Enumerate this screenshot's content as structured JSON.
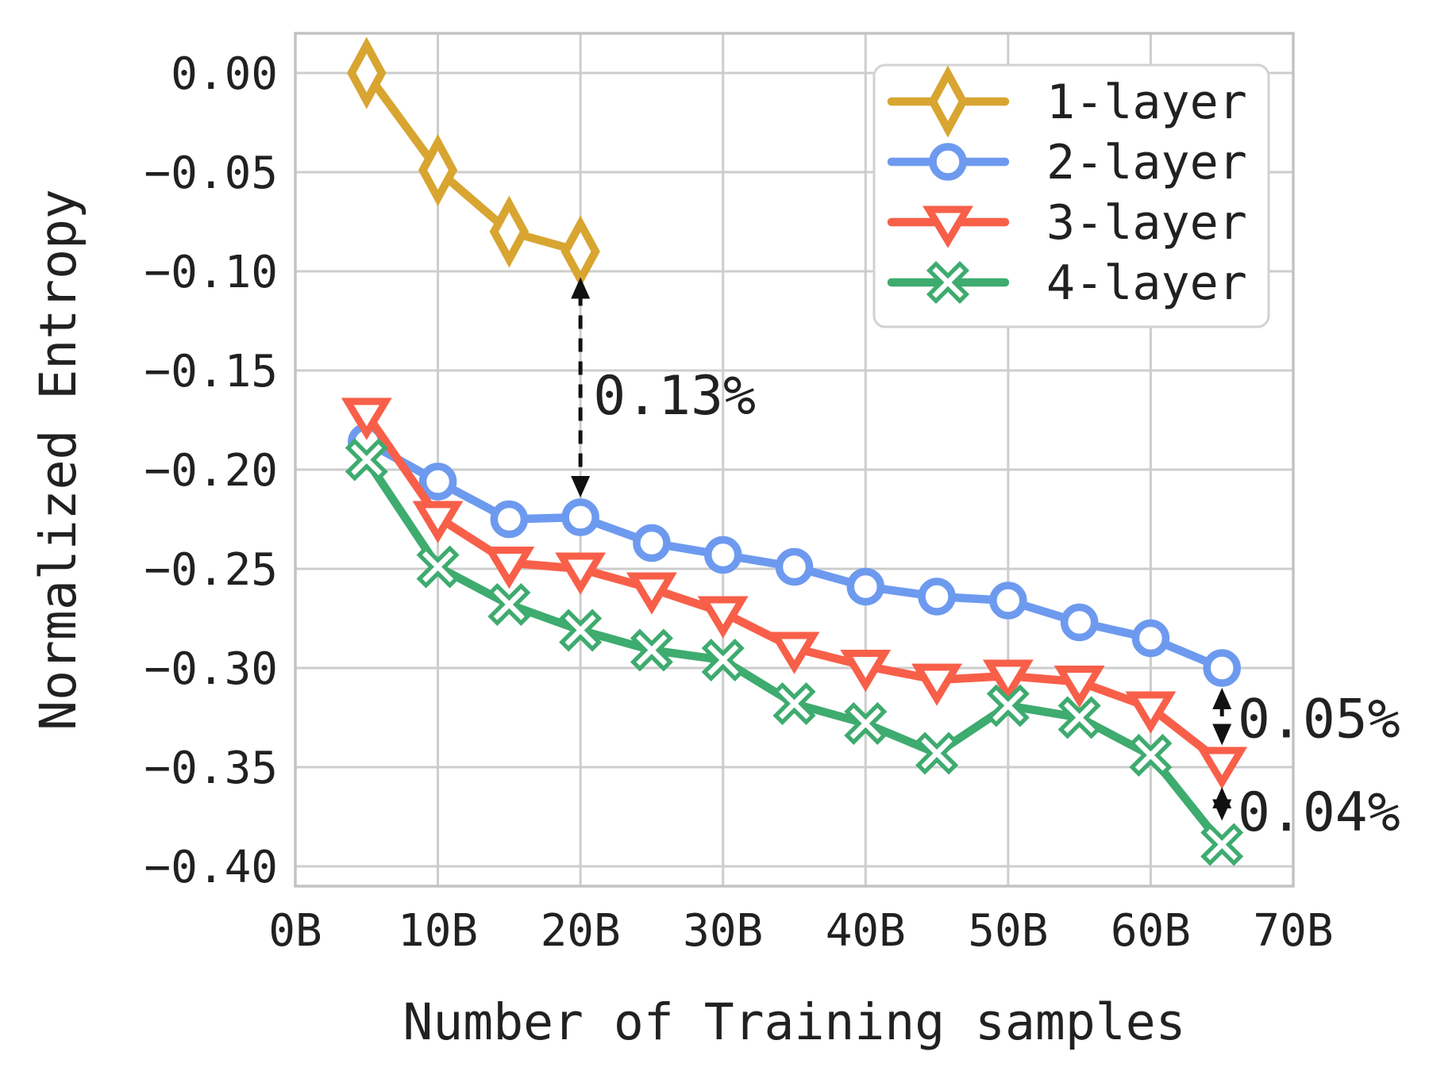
{
  "chart_data": {
    "type": "line",
    "title": "",
    "xlabel": "Number of Training samples",
    "ylabel": "Normalized Entropy",
    "xlim": [
      0,
      70
    ],
    "ylim": [
      -0.41,
      0.02
    ],
    "grid": true,
    "legend_position": "upper right",
    "x_unit": "B",
    "x_ticks": [
      {
        "value": 0,
        "label": "0B"
      },
      {
        "value": 10,
        "label": "10B"
      },
      {
        "value": 20,
        "label": "20B"
      },
      {
        "value": 30,
        "label": "30B"
      },
      {
        "value": 40,
        "label": "40B"
      },
      {
        "value": 50,
        "label": "50B"
      },
      {
        "value": 60,
        "label": "60B"
      },
      {
        "value": 70,
        "label": "70B"
      }
    ],
    "y_ticks": [
      {
        "value": 0.0,
        "label": "0.00"
      },
      {
        "value": -0.05,
        "label": "−0.05"
      },
      {
        "value": -0.1,
        "label": "−0.10"
      },
      {
        "value": -0.15,
        "label": "−0.15"
      },
      {
        "value": -0.2,
        "label": "−0.20"
      },
      {
        "value": -0.25,
        "label": "−0.25"
      },
      {
        "value": -0.3,
        "label": "−0.30"
      },
      {
        "value": -0.35,
        "label": "−0.35"
      },
      {
        "value": -0.4,
        "label": "−0.40"
      }
    ],
    "series": [
      {
        "name": "1-layer",
        "color": "#d8a531",
        "marker": "thin-diamond",
        "x": [
          5,
          10,
          15,
          20
        ],
        "y": [
          0.0,
          -0.049,
          -0.08,
          -0.09
        ]
      },
      {
        "name": "2-layer",
        "color": "#6d9aef",
        "marker": "circle",
        "x": [
          5,
          10,
          15,
          20,
          25,
          30,
          35,
          40,
          45,
          50,
          55,
          60,
          65
        ],
        "y": [
          -0.186,
          -0.206,
          -0.225,
          -0.224,
          -0.237,
          -0.243,
          -0.249,
          -0.259,
          -0.264,
          -0.266,
          -0.277,
          -0.285,
          -0.3
        ]
      },
      {
        "name": "3-layer",
        "color": "#f85f49",
        "marker": "triangle-down",
        "x": [
          5,
          10,
          15,
          20,
          25,
          30,
          35,
          40,
          45,
          50,
          55,
          60,
          65
        ],
        "y": [
          -0.172,
          -0.224,
          -0.247,
          -0.25,
          -0.26,
          -0.272,
          -0.29,
          -0.299,
          -0.306,
          -0.304,
          -0.307,
          -0.32,
          -0.348
        ]
      },
      {
        "name": "4-layer",
        "color": "#3eab6f",
        "marker": "x-filled",
        "x": [
          5,
          10,
          15,
          20,
          25,
          30,
          35,
          40,
          45,
          50,
          55,
          60,
          65
        ],
        "y": [
          -0.195,
          -0.249,
          -0.268,
          -0.281,
          -0.291,
          -0.296,
          -0.318,
          -0.328,
          -0.343,
          -0.319,
          -0.325,
          -0.344,
          -0.389
        ]
      }
    ],
    "annotations": [
      {
        "text": "0.13%",
        "arrow_x": 20,
        "arrow_y_from": -0.103,
        "arrow_y_to": -0.214,
        "text_x": 20.9,
        "text_y": -0.172
      },
      {
        "text": "0.05%",
        "arrow_x": 65,
        "arrow_y_from": -0.31,
        "arrow_y_to": -0.339,
        "text_x": 66.1,
        "text_y": -0.335
      },
      {
        "text": "0.04%",
        "arrow_x": 65,
        "arrow_y_from": -0.36,
        "arrow_y_to": -0.377,
        "text_x": 66.1,
        "text_y": -0.382
      }
    ],
    "style": {
      "background": "#ffffff",
      "text_color": "#212121",
      "grid_color": "#cdcdcd",
      "spine_color": "#c3c3c3",
      "arrow_color": "#111111",
      "legend_border_color": "#d2d2d2",
      "legend_background": "#ffffff",
      "marker_face": "#ffffff"
    }
  }
}
